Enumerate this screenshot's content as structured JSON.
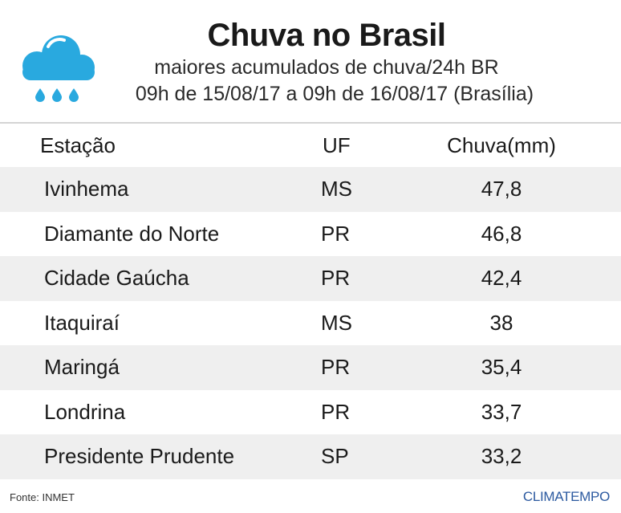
{
  "header": {
    "title": "Chuva no Brasil",
    "subtitle": "maiores acumulados de chuva/24h BR",
    "period": "09h de 15/08/17 a 09h de 16/08/17 (Brasília)"
  },
  "colors": {
    "icon": "#29a9df",
    "row_shade": "#efefef",
    "divider": "#d4d4d4",
    "brand": "#2c5aa0"
  },
  "icons": {
    "weather": "rain-cloud-icon"
  },
  "chart_data": {
    "type": "table",
    "columns": [
      "Estação",
      "UF",
      "Chuva(mm)"
    ],
    "rows": [
      [
        "Ivinhema",
        "MS",
        "47,8"
      ],
      [
        "Diamante do Norte",
        "PR",
        "46,8"
      ],
      [
        "Cidade Gaúcha",
        "PR",
        "42,4"
      ],
      [
        "Itaquiraí",
        "MS",
        "38"
      ],
      [
        "Maringá",
        "PR",
        "35,4"
      ],
      [
        "Londrina",
        "PR",
        "33,7"
      ],
      [
        "Presidente Prudente",
        "SP",
        "33,2"
      ]
    ]
  },
  "footer": {
    "source": "Fonte: INMET",
    "brand": "CLIMATEMPO"
  }
}
